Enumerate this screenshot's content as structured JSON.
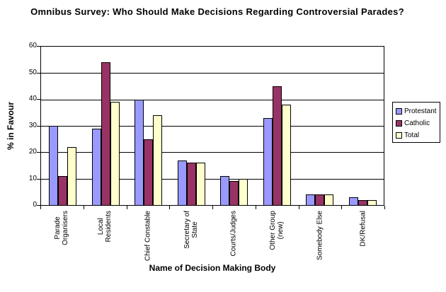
{
  "window": {
    "background": "#FFFFFF"
  },
  "chart_data": {
    "type": "bar",
    "title": "Omnibus Survey: Who Should Make Decisions Regarding Controversial Parades?",
    "xlabel": "Name of Decision Making Body",
    "ylabel": "% in Favour",
    "ylim": [
      0,
      60
    ],
    "yticks": [
      0,
      10,
      20,
      30,
      40,
      50,
      60
    ],
    "grid": true,
    "legend_position": "right",
    "plot_background": "#FFFFFF",
    "gridline_color": "#000000",
    "bar_border_color": "#000000",
    "categories": [
      "Parade Organisers",
      "Local Residents",
      "Chief Constable",
      "Secretary of State",
      "Courts/Judges",
      "Other Group (new)",
      "Somebody Else",
      "DK/Refusal"
    ],
    "category_label_lines": [
      [
        "Parade",
        "Organisers"
      ],
      [
        "Local",
        "Residents"
      ],
      [
        "Chief Constable"
      ],
      [
        "Secretary of",
        "State"
      ],
      [
        "Courts/Judges"
      ],
      [
        "Other Group",
        "(new)"
      ],
      [
        "Somebody Else"
      ],
      [
        "DK/Refusal"
      ]
    ],
    "series": [
      {
        "name": "Protestant",
        "color": "#9999FF",
        "values": [
          30,
          29,
          40,
          17,
          11,
          33,
          4,
          3
        ]
      },
      {
        "name": "Catholic",
        "color": "#993366",
        "values": [
          11,
          54,
          25,
          16,
          9,
          45,
          4,
          2
        ]
      },
      {
        "name": "Total",
        "color": "#FFFFCC",
        "values": [
          22,
          39,
          34,
          16,
          10,
          38,
          4,
          2
        ]
      }
    ]
  }
}
